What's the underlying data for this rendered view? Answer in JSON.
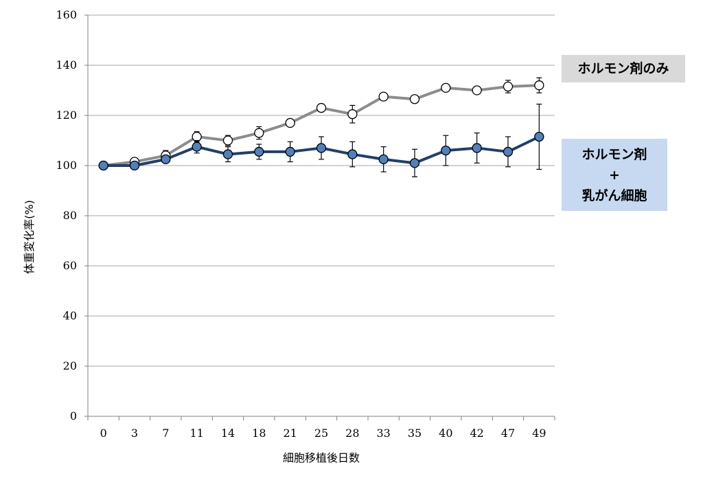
{
  "chart_data": {
    "type": "line",
    "xlabel": "細胞移植後日数",
    "ylabel": "体重変化率(%)",
    "categories": [
      "0",
      "3",
      "7",
      "11",
      "14",
      "18",
      "21",
      "25",
      "28",
      "33",
      "35",
      "40",
      "42",
      "47",
      "49"
    ],
    "ylim": [
      0,
      160
    ],
    "yticks": [
      0,
      20,
      40,
      60,
      80,
      100,
      120,
      140,
      160
    ],
    "grid": true,
    "series": [
      {
        "name": "ホルモン剤のみ",
        "color": "#8c8c8c",
        "marker_fill": "#ffffff",
        "values": [
          100,
          101.5,
          104,
          111.5,
          110,
          113,
          117,
          123,
          120.5,
          127.5,
          126.5,
          131,
          130,
          131.5,
          132
        ],
        "errors": [
          0,
          0.5,
          2,
          2,
          2,
          2.5,
          0,
          0,
          3.5,
          0,
          0,
          0,
          0,
          2.5,
          3
        ]
      },
      {
        "name": "ホルモン剤 + 乳がん細胞",
        "color": "#1f3f6e",
        "marker_fill": "#4f81bd",
        "values": [
          100,
          100,
          102.5,
          107.5,
          104.5,
          105.5,
          105.5,
          107,
          104.5,
          102.5,
          101,
          106,
          107,
          105.5,
          111.5
        ],
        "errors": [
          0,
          0,
          1.5,
          2.5,
          3,
          3,
          4,
          4.5,
          5,
          5,
          5.5,
          6,
          6,
          6,
          13
        ]
      }
    ]
  },
  "legend": {
    "hormone_only": "ホルモン剤のみ",
    "cancer_line1": "ホルモン剤",
    "cancer_line2": "+",
    "cancer_line3": "乳がん細胞"
  }
}
